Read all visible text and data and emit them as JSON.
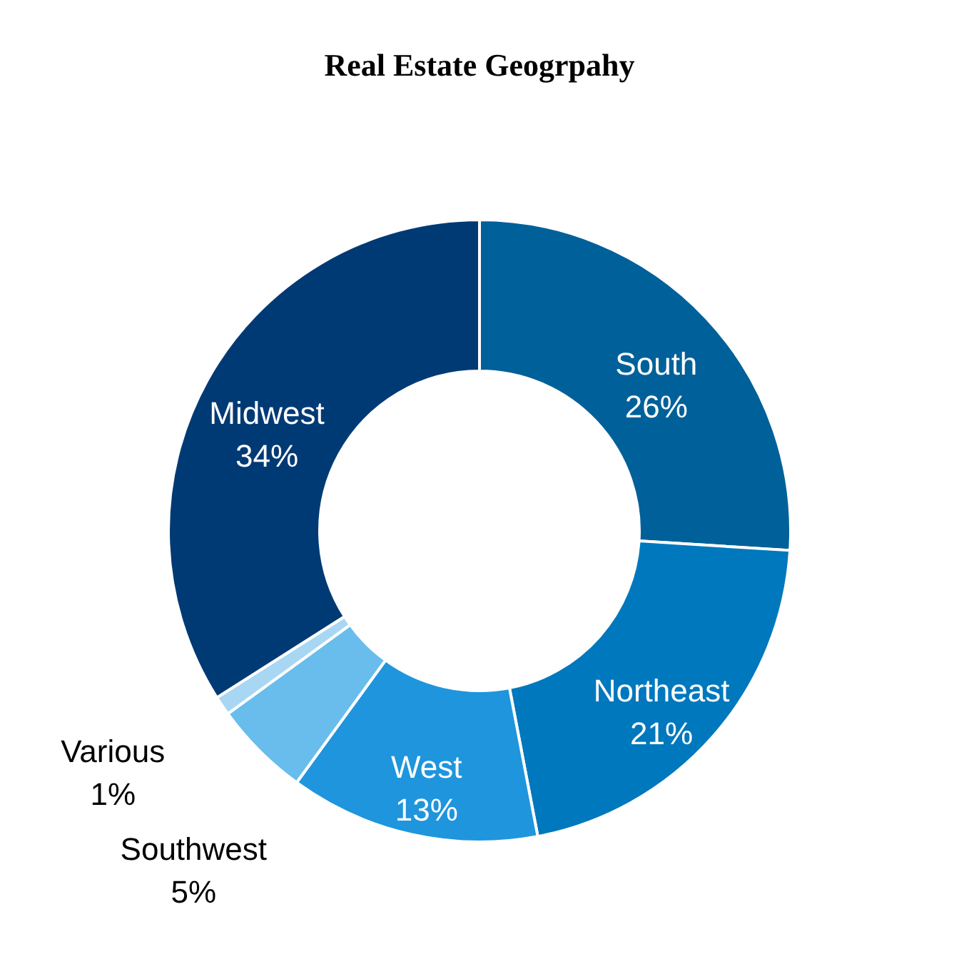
{
  "chart_data": {
    "type": "donut",
    "title": "Real Estate Geogrpahy",
    "categories": [
      "South",
      "Northeast",
      "West",
      "Southwest",
      "Various",
      "Midwest"
    ],
    "values": [
      26,
      21,
      13,
      5,
      1,
      34
    ],
    "value_labels": [
      "26%",
      "21%",
      "13%",
      "5%",
      "1%",
      "34%"
    ],
    "colors": [
      "#00609a",
      "#0078bd",
      "#1f95dd",
      "#68bdec",
      "#a8d7f4",
      "#003a74"
    ]
  }
}
